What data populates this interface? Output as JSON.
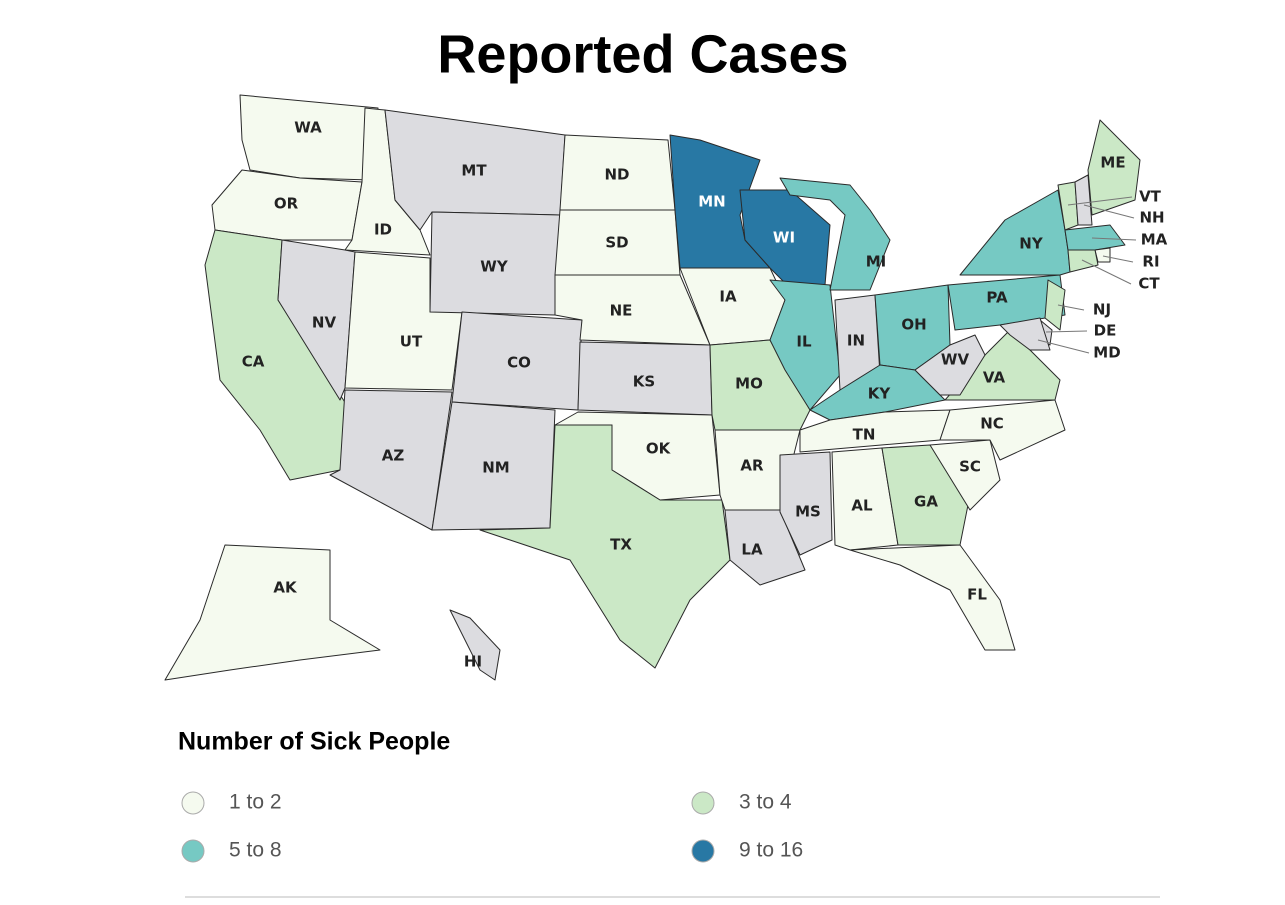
{
  "title": "Reported Cases",
  "legend": {
    "title": "Number of Sick People",
    "items": [
      {
        "label": "1 to 2",
        "color": "#f5faef"
      },
      {
        "label": "3 to 4",
        "color": "#cbe8c6"
      },
      {
        "label": "5 to 8",
        "color": "#76c9c3"
      },
      {
        "label": "9 to 16",
        "color": "#2878a4"
      }
    ],
    "no_data_color": "#dcdce0"
  },
  "states": [
    {
      "label": "WA",
      "bin": 0
    },
    {
      "label": "OR",
      "bin": 0
    },
    {
      "label": "CA",
      "bin": 1
    },
    {
      "label": "ID",
      "bin": 0
    },
    {
      "label": "NV",
      "bin": null
    },
    {
      "label": "UT",
      "bin": 0
    },
    {
      "label": "AZ",
      "bin": null
    },
    {
      "label": "MT",
      "bin": null
    },
    {
      "label": "WY",
      "bin": null
    },
    {
      "label": "CO",
      "bin": null
    },
    {
      "label": "NM",
      "bin": null
    },
    {
      "label": "ND",
      "bin": 0
    },
    {
      "label": "SD",
      "bin": 0
    },
    {
      "label": "NE",
      "bin": 0
    },
    {
      "label": "KS",
      "bin": null
    },
    {
      "label": "OK",
      "bin": 0
    },
    {
      "label": "TX",
      "bin": 1
    },
    {
      "label": "MN",
      "bin": 3
    },
    {
      "label": "IA",
      "bin": 0
    },
    {
      "label": "MO",
      "bin": 1
    },
    {
      "label": "AR",
      "bin": 0
    },
    {
      "label": "LA",
      "bin": null
    },
    {
      "label": "WI",
      "bin": 3
    },
    {
      "label": "IL",
      "bin": 2
    },
    {
      "label": "MI",
      "bin": 2
    },
    {
      "label": "IN",
      "bin": null
    },
    {
      "label": "OH",
      "bin": 2
    },
    {
      "label": "KY",
      "bin": 2
    },
    {
      "label": "TN",
      "bin": 0
    },
    {
      "label": "MS",
      "bin": null
    },
    {
      "label": "AL",
      "bin": 0
    },
    {
      "label": "GA",
      "bin": 1
    },
    {
      "label": "FL",
      "bin": 0
    },
    {
      "label": "SC",
      "bin": 0
    },
    {
      "label": "NC",
      "bin": 0
    },
    {
      "label": "VA",
      "bin": 1
    },
    {
      "label": "WV",
      "bin": null
    },
    {
      "label": "PA",
      "bin": 2
    },
    {
      "label": "NY",
      "bin": 2
    },
    {
      "label": "VT",
      "bin": 1
    },
    {
      "label": "NH",
      "bin": null
    },
    {
      "label": "ME",
      "bin": 1
    },
    {
      "label": "MA",
      "bin": 2
    },
    {
      "label": "RI",
      "bin": 0
    },
    {
      "label": "CT",
      "bin": 1
    },
    {
      "label": "NJ",
      "bin": 1
    },
    {
      "label": "DE",
      "bin": null
    },
    {
      "label": "MD",
      "bin": null
    },
    {
      "label": "AK",
      "bin": 0
    },
    {
      "label": "HI",
      "bin": null
    }
  ]
}
